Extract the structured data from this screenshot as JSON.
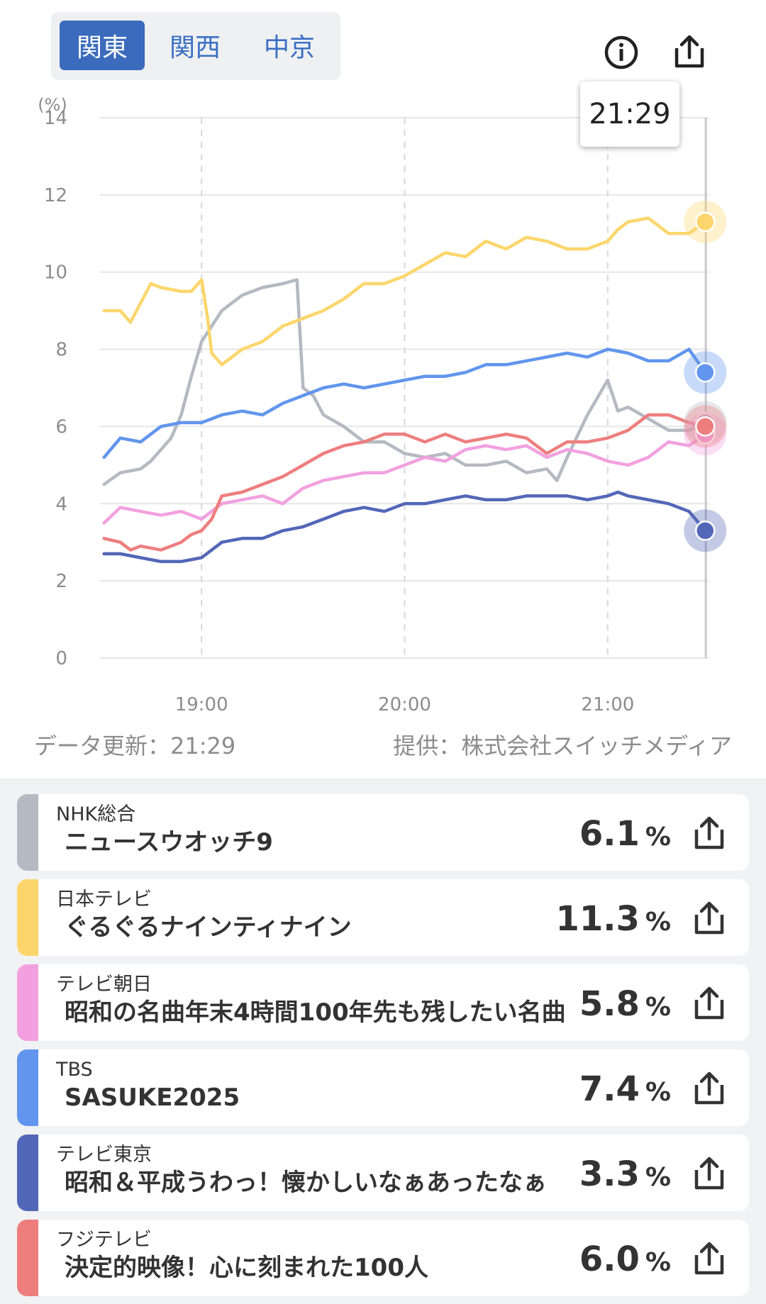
{
  "regions": {
    "tabs": [
      "関東",
      "関西",
      "中京"
    ],
    "active": "関東"
  },
  "icons": {
    "info": "info-icon",
    "share": "share-icon"
  },
  "tooltip": {
    "time": "21:29"
  },
  "footer": {
    "update_label": "データ更新：21:29",
    "provider_label": "提供：株式会社スイッチメディア"
  },
  "chart_data": {
    "type": "line",
    "ylabel": "(%)",
    "ylim": [
      0,
      14
    ],
    "yticks": [
      0,
      2,
      4,
      6,
      8,
      10,
      12,
      14
    ],
    "xlim": [
      18.5,
      21.5
    ],
    "xticks": [
      19,
      20,
      21
    ],
    "xtick_labels": [
      "19:00",
      "20:00",
      "21:00"
    ],
    "cursor_x": 21.483,
    "grid": true,
    "series": [
      {
        "name": "NHK総合",
        "color": "#b4b9c2",
        "x": [
          18.52,
          18.6,
          18.7,
          18.75,
          18.85,
          18.9,
          18.95,
          19.0,
          19.05,
          19.1,
          19.2,
          19.3,
          19.4,
          19.47,
          19.5,
          19.55,
          19.6,
          19.7,
          19.8,
          19.9,
          20.0,
          20.1,
          20.2,
          20.3,
          20.4,
          20.5,
          20.6,
          20.7,
          20.75,
          20.8,
          20.9,
          21.0,
          21.05,
          21.1,
          21.2,
          21.3,
          21.4,
          21.48
        ],
        "y": [
          4.5,
          4.8,
          4.9,
          5.1,
          5.7,
          6.3,
          7.3,
          8.2,
          8.6,
          9.0,
          9.4,
          9.6,
          9.7,
          9.8,
          7.0,
          6.8,
          6.3,
          6.0,
          5.6,
          5.6,
          5.3,
          5.2,
          5.3,
          5.0,
          5.0,
          5.1,
          4.8,
          4.9,
          4.6,
          5.2,
          6.3,
          7.2,
          6.4,
          6.5,
          6.2,
          5.9,
          5.9,
          6.1
        ]
      },
      {
        "name": "日本テレビ",
        "color": "#fcd66c",
        "x": [
          18.52,
          18.6,
          18.65,
          18.7,
          18.75,
          18.8,
          18.9,
          18.95,
          19.0,
          19.03,
          19.05,
          19.1,
          19.2,
          19.3,
          19.4,
          19.5,
          19.6,
          19.7,
          19.8,
          19.9,
          20.0,
          20.1,
          20.2,
          20.3,
          20.4,
          20.5,
          20.6,
          20.7,
          20.8,
          20.9,
          21.0,
          21.05,
          21.1,
          21.2,
          21.3,
          21.4,
          21.48
        ],
        "y": [
          9.0,
          9.0,
          8.7,
          9.2,
          9.7,
          9.6,
          9.5,
          9.5,
          9.8,
          8.8,
          7.9,
          7.6,
          8.0,
          8.2,
          8.6,
          8.8,
          9.0,
          9.3,
          9.7,
          9.7,
          9.9,
          10.2,
          10.5,
          10.4,
          10.8,
          10.6,
          10.9,
          10.8,
          10.6,
          10.6,
          10.8,
          11.1,
          11.3,
          11.4,
          11.0,
          11.0,
          11.3
        ]
      },
      {
        "name": "テレビ朝日",
        "color": "#f2a0e0",
        "x": [
          18.52,
          18.6,
          18.7,
          18.8,
          18.9,
          18.95,
          19.0,
          19.1,
          19.2,
          19.3,
          19.4,
          19.5,
          19.6,
          19.7,
          19.8,
          19.9,
          20.0,
          20.1,
          20.2,
          20.3,
          20.4,
          20.5,
          20.6,
          20.7,
          20.8,
          20.9,
          21.0,
          21.1,
          21.2,
          21.3,
          21.4,
          21.48
        ],
        "y": [
          3.5,
          3.9,
          3.8,
          3.7,
          3.8,
          3.7,
          3.6,
          4.0,
          4.1,
          4.2,
          4.0,
          4.4,
          4.6,
          4.7,
          4.8,
          4.8,
          5.0,
          5.2,
          5.1,
          5.4,
          5.5,
          5.4,
          5.5,
          5.2,
          5.4,
          5.3,
          5.1,
          5.0,
          5.2,
          5.6,
          5.5,
          5.8
        ]
      },
      {
        "name": "TBS",
        "color": "#6195ee",
        "x": [
          18.52,
          18.6,
          18.7,
          18.8,
          18.9,
          19.0,
          19.1,
          19.2,
          19.3,
          19.4,
          19.5,
          19.6,
          19.7,
          19.8,
          19.9,
          20.0,
          20.1,
          20.2,
          20.3,
          20.4,
          20.5,
          20.6,
          20.7,
          20.8,
          20.9,
          21.0,
          21.1,
          21.2,
          21.3,
          21.4,
          21.48
        ],
        "y": [
          5.2,
          5.7,
          5.6,
          6.0,
          6.1,
          6.1,
          6.3,
          6.4,
          6.3,
          6.6,
          6.8,
          7.0,
          7.1,
          7.0,
          7.1,
          7.2,
          7.3,
          7.3,
          7.4,
          7.6,
          7.6,
          7.7,
          7.8,
          7.9,
          7.8,
          8.0,
          7.9,
          7.7,
          7.7,
          8.0,
          7.4
        ]
      },
      {
        "name": "テレビ東京",
        "color": "#5367b8",
        "x": [
          18.52,
          18.6,
          18.7,
          18.8,
          18.9,
          19.0,
          19.1,
          19.2,
          19.3,
          19.4,
          19.5,
          19.6,
          19.7,
          19.8,
          19.9,
          20.0,
          20.1,
          20.2,
          20.3,
          20.4,
          20.5,
          20.6,
          20.7,
          20.8,
          20.9,
          21.0,
          21.05,
          21.1,
          21.2,
          21.3,
          21.4,
          21.48
        ],
        "y": [
          2.7,
          2.7,
          2.6,
          2.5,
          2.5,
          2.6,
          3.0,
          3.1,
          3.1,
          3.3,
          3.4,
          3.6,
          3.8,
          3.9,
          3.8,
          4.0,
          4.0,
          4.1,
          4.2,
          4.1,
          4.1,
          4.2,
          4.2,
          4.2,
          4.1,
          4.2,
          4.3,
          4.2,
          4.1,
          4.0,
          3.8,
          3.3
        ]
      },
      {
        "name": "フジテレビ",
        "color": "#ee7e7e",
        "x": [
          18.52,
          18.6,
          18.65,
          18.7,
          18.8,
          18.9,
          18.95,
          19.0,
          19.05,
          19.1,
          19.2,
          19.3,
          19.4,
          19.5,
          19.6,
          19.7,
          19.8,
          19.9,
          20.0,
          20.1,
          20.2,
          20.3,
          20.4,
          20.5,
          20.6,
          20.7,
          20.8,
          20.9,
          21.0,
          21.1,
          21.2,
          21.3,
          21.4,
          21.48
        ],
        "y": [
          3.1,
          3.0,
          2.8,
          2.9,
          2.8,
          3.0,
          3.2,
          3.3,
          3.6,
          4.2,
          4.3,
          4.5,
          4.7,
          5.0,
          5.3,
          5.5,
          5.6,
          5.8,
          5.8,
          5.6,
          5.8,
          5.6,
          5.7,
          5.8,
          5.7,
          5.3,
          5.6,
          5.6,
          5.7,
          5.9,
          6.3,
          6.3,
          6.1,
          6.0
        ]
      }
    ]
  },
  "channels": [
    {
      "channel": "NHK総合",
      "program": "ニュースウオッチ9",
      "value": "6.1",
      "unit": "%",
      "color": "#b4b9c2"
    },
    {
      "channel": "日本テレビ",
      "program": "ぐるぐるナインティナイン",
      "value": "11.3",
      "unit": "%",
      "color": "#fcd66c"
    },
    {
      "channel": "テレビ朝日",
      "program": "昭和の名曲年末4時間100年先も残したい名曲",
      "value": "5.8",
      "unit": "%",
      "color": "#f2a0e0"
    },
    {
      "channel": "TBS",
      "program": "SASUKE2025",
      "value": "7.4",
      "unit": "%",
      "color": "#6195ee"
    },
    {
      "channel": "テレビ東京",
      "program": "昭和＆平成うわっ！懐かしいなぁあったなぁ",
      "value": "3.3",
      "unit": "%",
      "color": "#5367b8"
    },
    {
      "channel": "フジテレビ",
      "program": "決定的映像！心に刻まれた100人",
      "value": "6.0",
      "unit": "%",
      "color": "#ee7e7e"
    }
  ]
}
